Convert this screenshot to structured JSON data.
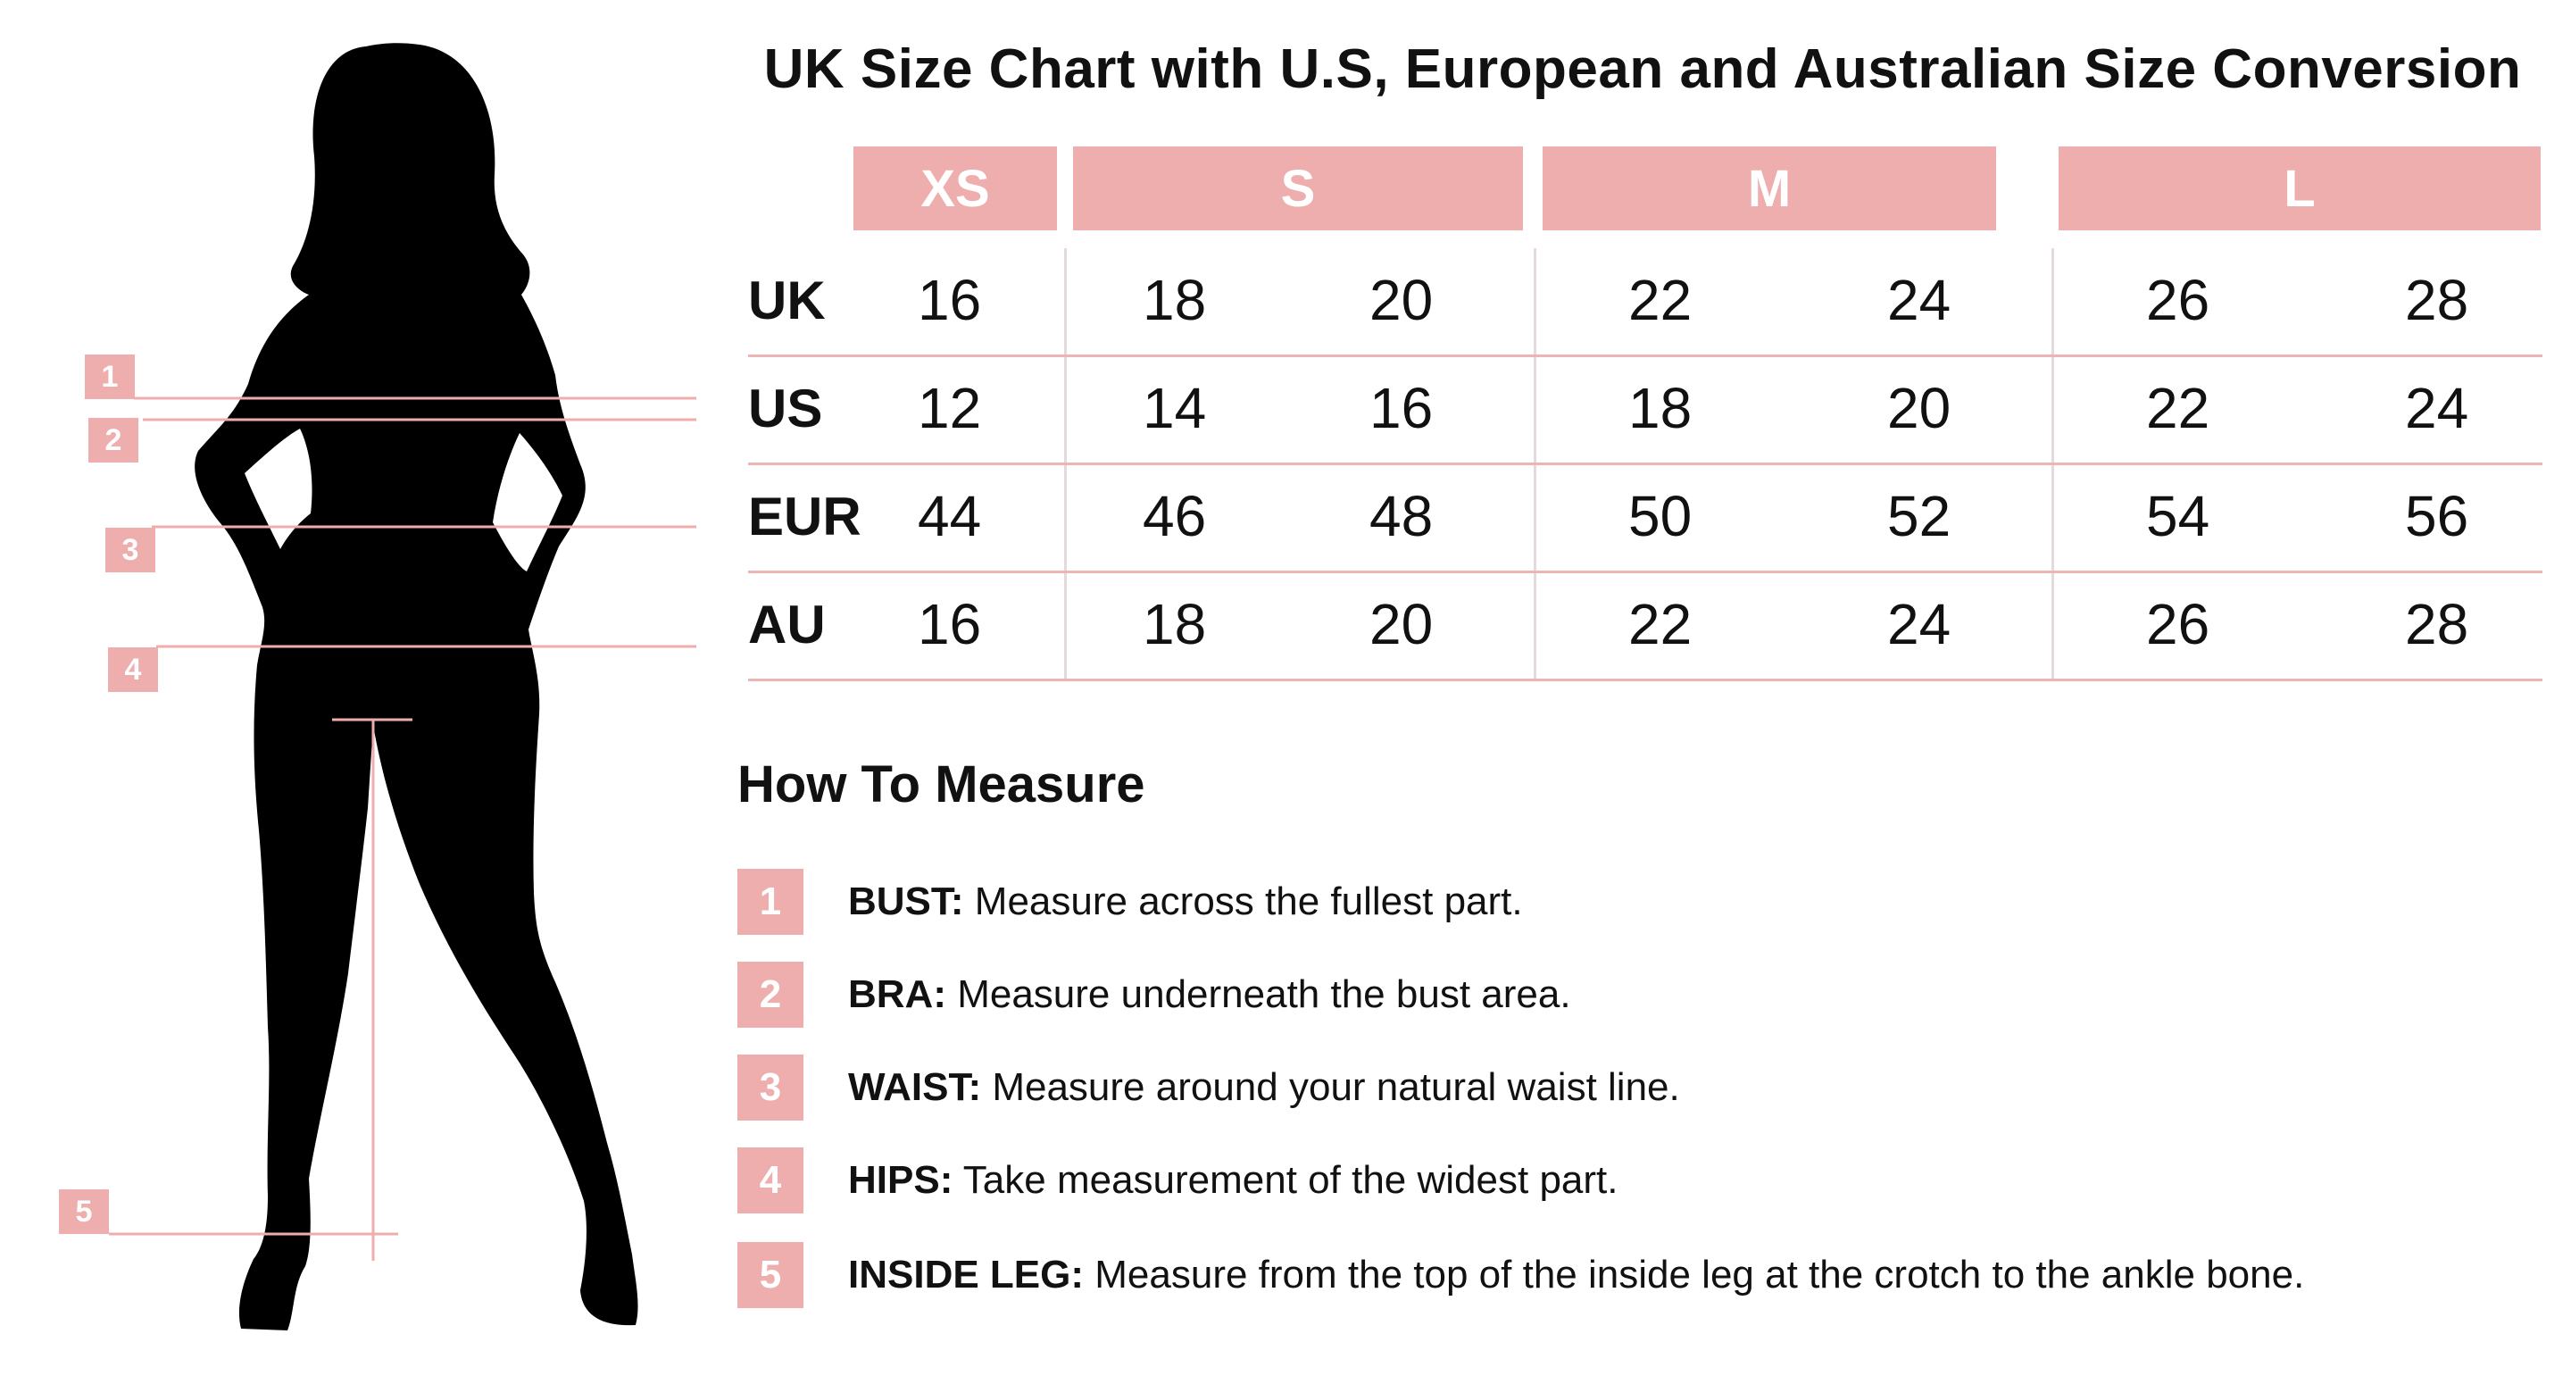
{
  "title": "UK Size Chart with U.S, European and Australian Size Conversion",
  "figure_markers": [
    "1",
    "2",
    "3",
    "4",
    "5"
  ],
  "table": {
    "size_groups": [
      "XS",
      "S",
      "M",
      "L"
    ],
    "rows": [
      {
        "label": "UK",
        "values": [
          "16",
          "18",
          "20",
          "22",
          "24",
          "26",
          "28"
        ]
      },
      {
        "label": "US",
        "values": [
          "12",
          "14",
          "16",
          "18",
          "20",
          "22",
          "24"
        ]
      },
      {
        "label": "EUR",
        "values": [
          "44",
          "46",
          "48",
          "50",
          "52",
          "54",
          "56"
        ]
      },
      {
        "label": "AU",
        "values": [
          "16",
          "18",
          "20",
          "22",
          "24",
          "26",
          "28"
        ]
      }
    ]
  },
  "how_to_measure": {
    "title": "How To Measure",
    "items": [
      {
        "number": "1",
        "label": "BUST:",
        "text": " Measure across the fullest part."
      },
      {
        "number": "2",
        "label": "BRA:",
        "text": " Measure underneath the bust area."
      },
      {
        "number": "3",
        "label": "WAIST:",
        "text": " Measure around your natural waist line."
      },
      {
        "number": "4",
        "label": "HIPS:",
        "text": " Take measurement of the widest part."
      },
      {
        "number": "5",
        "label": "INSIDE LEG:",
        "text": " Measure from the top of the inside leg at the crotch to the ankle bone."
      }
    ]
  },
  "colors": {
    "accent": "#eeaeae",
    "silhouette": "#000000",
    "text": "#111111",
    "grid_line": "#eeb4b4"
  }
}
